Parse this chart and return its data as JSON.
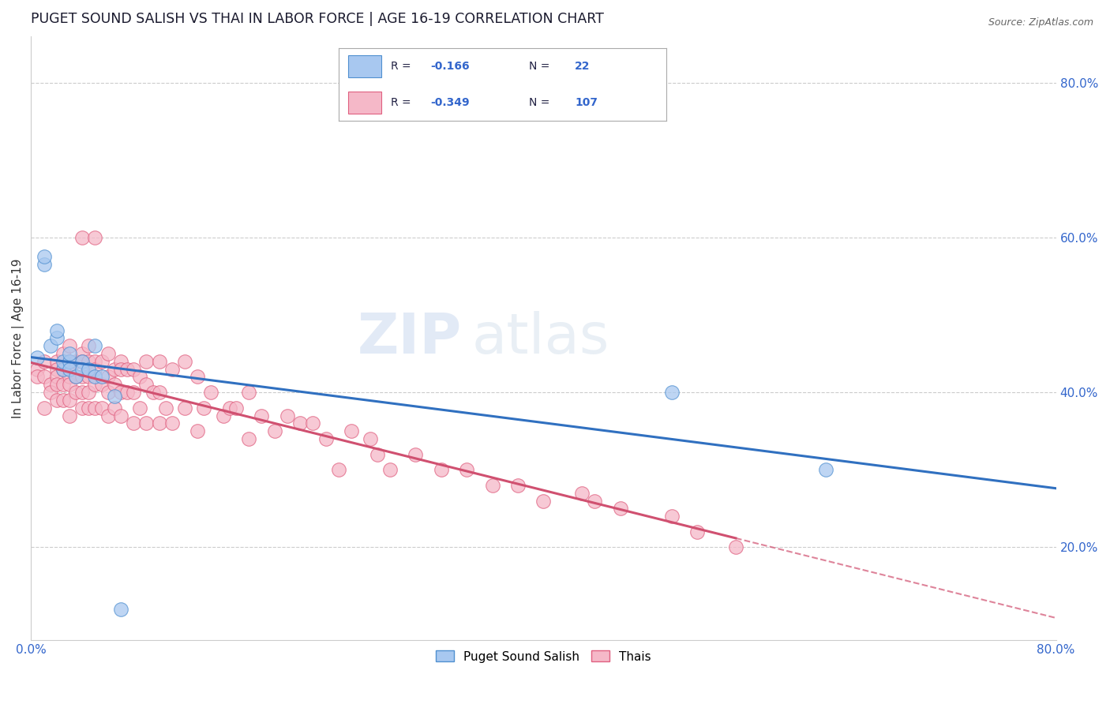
{
  "title": "PUGET SOUND SALISH VS THAI IN LABOR FORCE | AGE 16-19 CORRELATION CHART",
  "source": "Source: ZipAtlas.com",
  "ylabel": "In Labor Force | Age 16-19",
  "xlim": [
    0.0,
    0.8
  ],
  "ylim": [
    0.08,
    0.86
  ],
  "xtick_vals": [
    0.0,
    0.1,
    0.2,
    0.3,
    0.4,
    0.5,
    0.6,
    0.7,
    0.8
  ],
  "xtick_labels": [
    "0.0%",
    "",
    "",
    "",
    "",
    "",
    "",
    "",
    "80.0%"
  ],
  "ytick_right_labels": [
    "80.0%",
    "60.0%",
    "40.0%",
    "20.0%"
  ],
  "ytick_right_vals": [
    0.8,
    0.6,
    0.4,
    0.2
  ],
  "salish_r": -0.166,
  "salish_n": 22,
  "thai_r": -0.349,
  "thai_n": 107,
  "salish_color": "#A8C8F0",
  "thai_color": "#F5B8C8",
  "salish_edge_color": "#5090D0",
  "thai_edge_color": "#E06080",
  "salish_line_color": "#3070C0",
  "thai_line_color": "#D05070",
  "watermark_zip": "ZIP",
  "watermark_atlas": "atlas",
  "legend_r1": "R =  -0.166   N =  22",
  "legend_r2": "R =  -0.349   N = 107",
  "salish_x": [
    0.005,
    0.01,
    0.01,
    0.015,
    0.02,
    0.02,
    0.025,
    0.025,
    0.03,
    0.03,
    0.03,
    0.035,
    0.04,
    0.04,
    0.045,
    0.05,
    0.05,
    0.055,
    0.065,
    0.07,
    0.5,
    0.62
  ],
  "salish_y": [
    0.445,
    0.565,
    0.575,
    0.46,
    0.47,
    0.48,
    0.43,
    0.44,
    0.44,
    0.45,
    0.43,
    0.42,
    0.44,
    0.43,
    0.43,
    0.46,
    0.42,
    0.42,
    0.395,
    0.12,
    0.4,
    0.3
  ],
  "thai_x": [
    0.005,
    0.005,
    0.01,
    0.01,
    0.01,
    0.015,
    0.015,
    0.02,
    0.02,
    0.02,
    0.02,
    0.02,
    0.025,
    0.025,
    0.025,
    0.025,
    0.03,
    0.03,
    0.03,
    0.03,
    0.03,
    0.03,
    0.03,
    0.035,
    0.035,
    0.035,
    0.04,
    0.04,
    0.04,
    0.04,
    0.04,
    0.04,
    0.045,
    0.045,
    0.045,
    0.045,
    0.045,
    0.05,
    0.05,
    0.05,
    0.05,
    0.05,
    0.055,
    0.055,
    0.055,
    0.06,
    0.06,
    0.06,
    0.06,
    0.065,
    0.065,
    0.065,
    0.07,
    0.07,
    0.07,
    0.07,
    0.075,
    0.075,
    0.08,
    0.08,
    0.08,
    0.085,
    0.085,
    0.09,
    0.09,
    0.09,
    0.095,
    0.1,
    0.1,
    0.1,
    0.105,
    0.11,
    0.11,
    0.12,
    0.12,
    0.13,
    0.13,
    0.135,
    0.14,
    0.15,
    0.155,
    0.16,
    0.17,
    0.17,
    0.18,
    0.19,
    0.2,
    0.21,
    0.22,
    0.23,
    0.24,
    0.25,
    0.265,
    0.27,
    0.28,
    0.3,
    0.32,
    0.34,
    0.36,
    0.38,
    0.4,
    0.43,
    0.44,
    0.46,
    0.5,
    0.52,
    0.55
  ],
  "thai_y": [
    0.43,
    0.42,
    0.44,
    0.42,
    0.38,
    0.41,
    0.4,
    0.44,
    0.43,
    0.42,
    0.41,
    0.39,
    0.45,
    0.43,
    0.41,
    0.39,
    0.46,
    0.44,
    0.43,
    0.42,
    0.41,
    0.39,
    0.37,
    0.44,
    0.42,
    0.4,
    0.6,
    0.45,
    0.44,
    0.42,
    0.4,
    0.38,
    0.46,
    0.44,
    0.42,
    0.4,
    0.38,
    0.6,
    0.44,
    0.43,
    0.41,
    0.38,
    0.44,
    0.41,
    0.38,
    0.45,
    0.42,
    0.4,
    0.37,
    0.43,
    0.41,
    0.38,
    0.44,
    0.43,
    0.4,
    0.37,
    0.43,
    0.4,
    0.43,
    0.4,
    0.36,
    0.42,
    0.38,
    0.44,
    0.41,
    0.36,
    0.4,
    0.44,
    0.4,
    0.36,
    0.38,
    0.43,
    0.36,
    0.44,
    0.38,
    0.42,
    0.35,
    0.38,
    0.4,
    0.37,
    0.38,
    0.38,
    0.4,
    0.34,
    0.37,
    0.35,
    0.37,
    0.36,
    0.36,
    0.34,
    0.3,
    0.35,
    0.34,
    0.32,
    0.3,
    0.32,
    0.3,
    0.3,
    0.28,
    0.28,
    0.26,
    0.27,
    0.26,
    0.25,
    0.24,
    0.22,
    0.2
  ]
}
